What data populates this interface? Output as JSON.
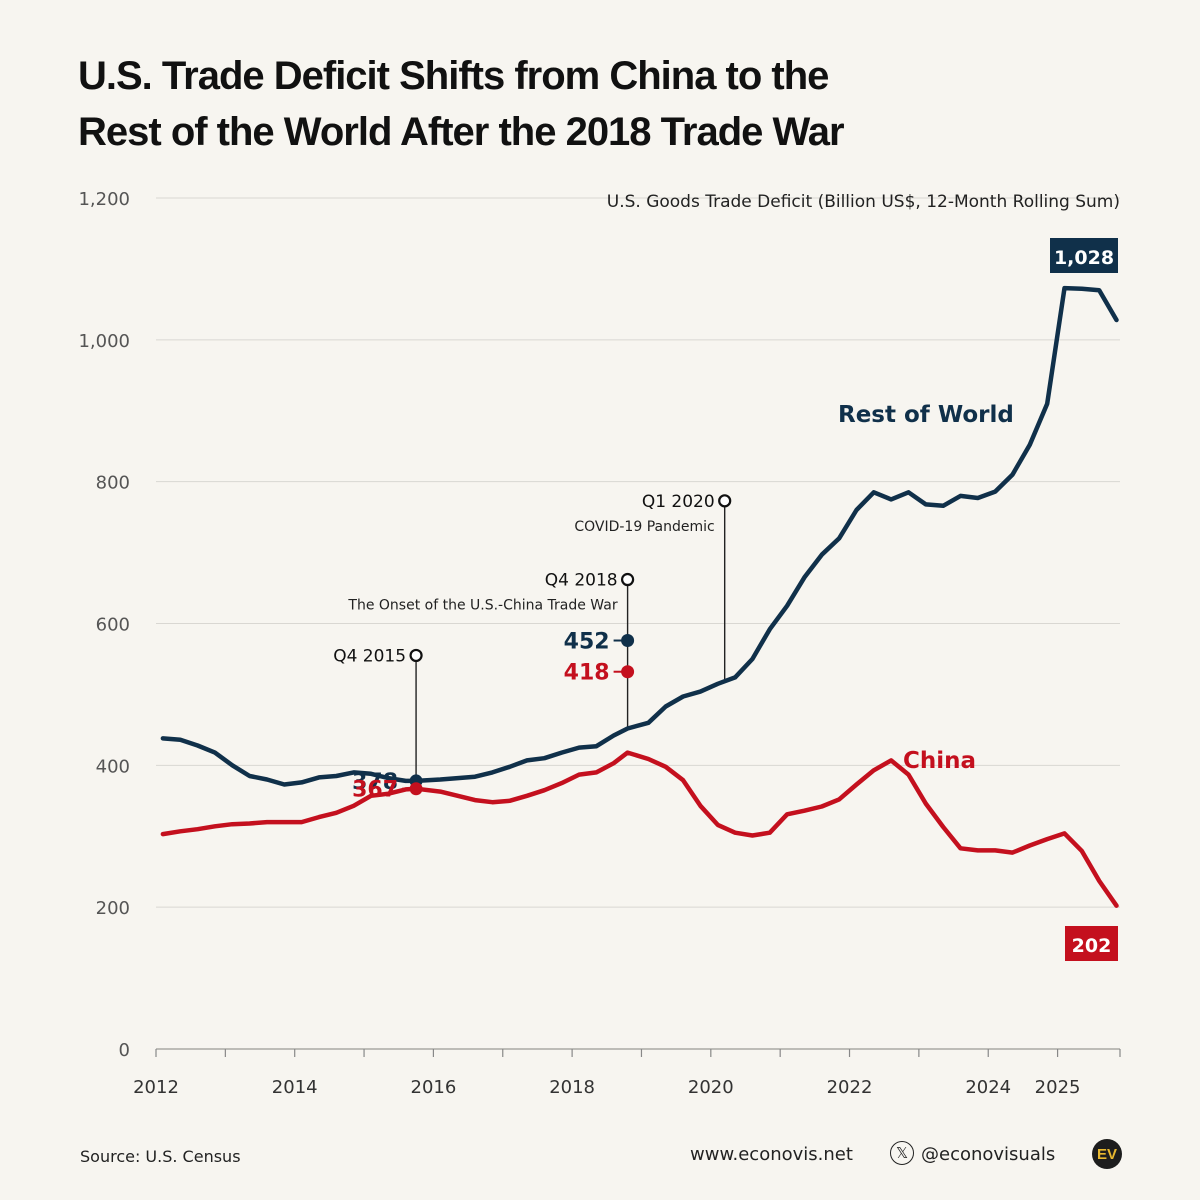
{
  "title": {
    "line1": "U.S. Trade Deficit Shifts from China to the",
    "line2": "Rest of the World After the 2018 Trade War"
  },
  "footer": {
    "source": "Source: U.S. Census",
    "website": "www.econovis.net",
    "x_icon": "x-logo-icon",
    "x_glyph": "𝕏",
    "handle": "@econovisuals",
    "logo_text": "EV"
  },
  "colors": {
    "background": "#f7f5f0",
    "rest_of_world": "#10304a",
    "china": "#c4101e",
    "grid": "#d9d7d2",
    "axis_text": "#555555"
  },
  "chart_data": {
    "type": "line",
    "ylabel": "U.S. Goods Trade Deficit (Billion US$, 12-Month Rolling Sum)",
    "ylim": [
      0,
      1200
    ],
    "yticks": [
      0,
      200,
      400,
      600,
      800,
      1000,
      1200
    ],
    "ytick_labels": [
      "0",
      "200",
      "400",
      "600",
      "800",
      "1,000",
      "1,200"
    ],
    "xlim": [
      2012,
      2025.9
    ],
    "xticks": [
      2012,
      2014,
      2016,
      2018,
      2020,
      2022,
      2024,
      2025
    ],
    "xtick_labels": [
      "2012",
      "2014",
      "2016",
      "2018",
      "2020",
      "2022",
      "2024",
      "2025"
    ],
    "grid": true,
    "series": [
      {
        "name": "Rest of World",
        "color": "#10304a",
        "label_value": "1,028",
        "x": [
          2012.1,
          2012.35,
          2012.6,
          2012.85,
          2013.1,
          2013.35,
          2013.6,
          2013.85,
          2014.1,
          2014.35,
          2014.6,
          2014.85,
          2015.1,
          2015.35,
          2015.6,
          2015.75,
          2016.1,
          2016.35,
          2016.6,
          2016.85,
          2017.1,
          2017.35,
          2017.6,
          2017.85,
          2018.1,
          2018.35,
          2018.6,
          2018.8,
          2019.1,
          2019.35,
          2019.6,
          2019.85,
          2020.1,
          2020.35,
          2020.6,
          2020.85,
          2021.1,
          2021.35,
          2021.6,
          2021.85,
          2022.1,
          2022.35,
          2022.6,
          2022.85,
          2023.1,
          2023.35,
          2023.6,
          2023.85,
          2024.1,
          2024.35,
          2024.6,
          2024.85,
          2025.1,
          2025.35,
          2025.6,
          2025.85
        ],
        "values": [
          438,
          436,
          428,
          418,
          400,
          385,
          380,
          373,
          376,
          383,
          385,
          390,
          388,
          382,
          378,
          378,
          380,
          382,
          384,
          390,
          398,
          407,
          410,
          418,
          425,
          427,
          442,
          452,
          460,
          483,
          497,
          504,
          515,
          524,
          550,
          592,
          625,
          665,
          697,
          720,
          760,
          785,
          775,
          785,
          768,
          766,
          780,
          777,
          786,
          810,
          852,
          910,
          1073,
          1072,
          1070,
          1028
        ]
      },
      {
        "name": "China",
        "color": "#c4101e",
        "label_value": "202",
        "x": [
          2012.1,
          2012.35,
          2012.6,
          2012.85,
          2013.1,
          2013.35,
          2013.6,
          2013.85,
          2014.1,
          2014.35,
          2014.6,
          2014.85,
          2015.1,
          2015.35,
          2015.6,
          2015.75,
          2016.1,
          2016.35,
          2016.6,
          2016.85,
          2017.1,
          2017.35,
          2017.6,
          2017.85,
          2018.1,
          2018.35,
          2018.6,
          2018.8,
          2019.1,
          2019.35,
          2019.6,
          2019.85,
          2020.1,
          2020.35,
          2020.6,
          2020.85,
          2021.1,
          2021.35,
          2021.6,
          2021.85,
          2022.1,
          2022.35,
          2022.6,
          2022.85,
          2023.1,
          2023.35,
          2023.6,
          2023.85,
          2024.1,
          2024.35,
          2024.6,
          2024.85,
          2025.1,
          2025.35,
          2025.6,
          2025.85
        ],
        "values": [
          303,
          307,
          310,
          314,
          317,
          318,
          320,
          320,
          320,
          327,
          333,
          343,
          357,
          360,
          366,
          367,
          363,
          357,
          351,
          348,
          350,
          357,
          365,
          375,
          387,
          390,
          403,
          418,
          409,
          398,
          379,
          343,
          316,
          305,
          301,
          305,
          331,
          336,
          342,
          352,
          373,
          393,
          407,
          387,
          346,
          313,
          283,
          280,
          280,
          277,
          287,
          296,
          304,
          279,
          237,
          202
        ]
      }
    ],
    "annotations": [
      {
        "x": 2015.75,
        "title": "Q4 2015",
        "subtitle": "",
        "top_value": 555,
        "line_to": 378,
        "rest_value": 378,
        "china_value": 367,
        "rest_label": "378",
        "china_label": "367"
      },
      {
        "x": 2018.8,
        "title": "Q4 2018",
        "subtitle": "The Onset of the U.S.-China Trade War",
        "top_value": 662,
        "line_to": 452,
        "rest_value": 576,
        "china_value": 532,
        "rest_label": "452",
        "china_label": "418"
      },
      {
        "x": 2020.2,
        "title": "Q1 2020",
        "subtitle": "COVID-19 Pandemic",
        "top_value": 773,
        "line_to": 518,
        "rest_value": null,
        "china_value": null,
        "rest_label": "",
        "china_label": ""
      }
    ],
    "series_labels": [
      {
        "text": "Rest of World",
        "series": 0
      },
      {
        "text": "China",
        "series": 1
      }
    ]
  }
}
